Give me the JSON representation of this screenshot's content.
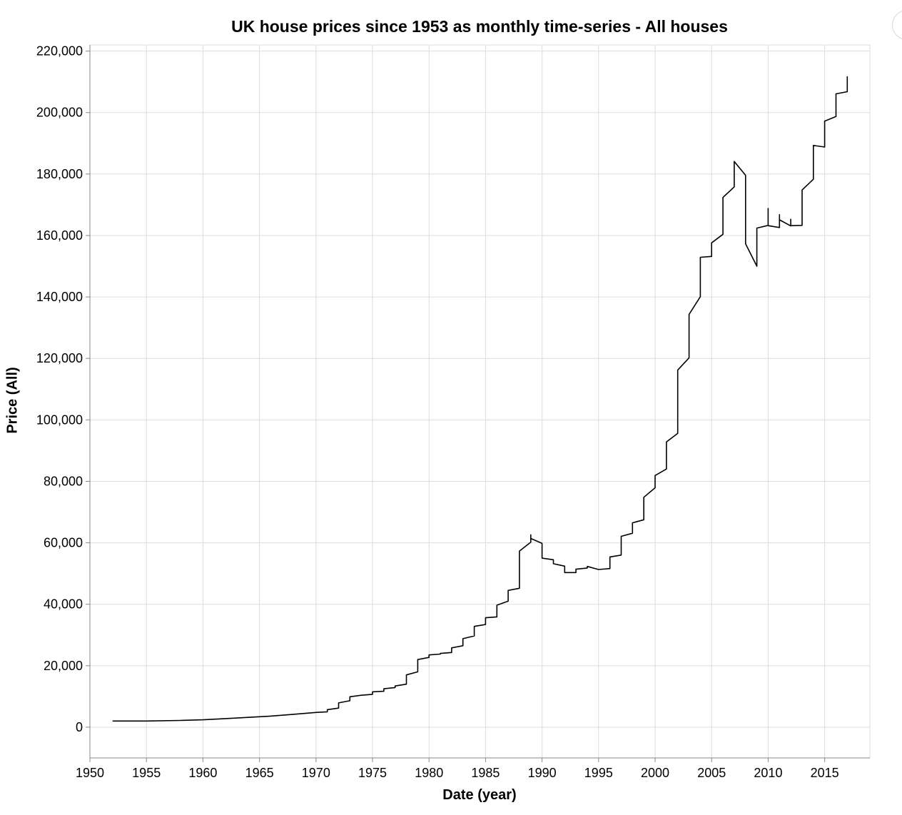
{
  "chart_data": {
    "type": "line",
    "title": "UK house prices since 1953 as monthly time-series - All houses",
    "xlabel": "Date (year)",
    "ylabel": "Price (All)",
    "xlim": [
      1950,
      2019
    ],
    "ylim": [
      -10000,
      222000
    ],
    "x_ticks": [
      1950,
      1955,
      1960,
      1965,
      1970,
      1975,
      1980,
      1985,
      1990,
      1995,
      2000,
      2005,
      2010,
      2015
    ],
    "y_ticks": [
      0,
      20000,
      40000,
      60000,
      80000,
      100000,
      120000,
      140000,
      160000,
      180000,
      200000,
      220000
    ],
    "y_tick_labels": [
      "0",
      "20,000",
      "40,000",
      "60,000",
      "80,000",
      "100,000",
      "120,000",
      "140,000",
      "160,000",
      "180,000",
      "200,000",
      "220,000"
    ],
    "x_tick_labels": [
      "1950",
      "1955",
      "1960",
      "1965",
      "1970",
      "1975",
      "1980",
      "1985",
      "1990",
      "1995",
      "2000",
      "2005",
      "2010",
      "2015"
    ],
    "grid": true,
    "series": [
      {
        "color": "#000000",
        "points": [
          [
            1952.0,
            2000
          ],
          [
            1955.0,
            2000
          ],
          [
            1958.0,
            2200
          ],
          [
            1960.0,
            2400
          ],
          [
            1962.0,
            2800
          ],
          [
            1964.0,
            3200
          ],
          [
            1966.0,
            3600
          ],
          [
            1968.0,
            4200
          ],
          [
            1970.0,
            4800
          ],
          [
            1971.0,
            5000
          ],
          [
            1971.0,
            5700
          ],
          [
            1972.0,
            6200
          ],
          [
            1972.0,
            7900
          ],
          [
            1973.0,
            8600
          ],
          [
            1973.0,
            9900
          ],
          [
            1974.0,
            10400
          ],
          [
            1975.0,
            10700
          ],
          [
            1975.0,
            11500
          ],
          [
            1976.0,
            11700
          ],
          [
            1976.0,
            12500
          ],
          [
            1977.0,
            12900
          ],
          [
            1977.0,
            13400
          ],
          [
            1978.0,
            14000
          ],
          [
            1978.0,
            17000
          ],
          [
            1979.0,
            18000
          ],
          [
            1979.0,
            22000
          ],
          [
            1980.0,
            22700
          ],
          [
            1980.0,
            23500
          ],
          [
            1981.0,
            23800
          ],
          [
            1981.0,
            24000
          ],
          [
            1982.0,
            24300
          ],
          [
            1982.0,
            25800
          ],
          [
            1983.0,
            26500
          ],
          [
            1983.0,
            28800
          ],
          [
            1984.0,
            29700
          ],
          [
            1984.0,
            32800
          ],
          [
            1985.0,
            33400
          ],
          [
            1985.0,
            35600
          ],
          [
            1986.0,
            35900
          ],
          [
            1986.0,
            39700
          ],
          [
            1987.0,
            41000
          ],
          [
            1987.0,
            44500
          ],
          [
            1988.0,
            45200
          ],
          [
            1988.0,
            57300
          ],
          [
            1989.0,
            60200
          ],
          [
            1989.0,
            62600
          ],
          [
            1989.0,
            61400
          ],
          [
            1990.0,
            59800
          ],
          [
            1990.0,
            55000
          ],
          [
            1991.0,
            54500
          ],
          [
            1991.0,
            53200
          ],
          [
            1992.0,
            52400
          ],
          [
            1992.0,
            50300
          ],
          [
            1993.0,
            50300
          ],
          [
            1993.0,
            51400
          ],
          [
            1994.0,
            51800
          ],
          [
            1994.0,
            52300
          ],
          [
            1995.0,
            51300
          ],
          [
            1996.0,
            51600
          ],
          [
            1996.0,
            55400
          ],
          [
            1997.0,
            56000
          ],
          [
            1997.0,
            62100
          ],
          [
            1998.0,
            63100
          ],
          [
            1998.0,
            66500
          ],
          [
            1999.0,
            67500
          ],
          [
            1999.0,
            74800
          ],
          [
            2000.0,
            77900
          ],
          [
            2000.0,
            81900
          ],
          [
            2001.0,
            84000
          ],
          [
            2001.0,
            92800
          ],
          [
            2002.0,
            95600
          ],
          [
            2002.0,
            116200
          ],
          [
            2003.0,
            120200
          ],
          [
            2003.0,
            134300
          ],
          [
            2004.0,
            140100
          ],
          [
            2004.0,
            152900
          ],
          [
            2005.0,
            153200
          ],
          [
            2005.0,
            157600
          ],
          [
            2006.0,
            160400
          ],
          [
            2006.0,
            172400
          ],
          [
            2007.0,
            175800
          ],
          [
            2007.0,
            184100
          ],
          [
            2008.0,
            179600
          ],
          [
            2008.0,
            157300
          ],
          [
            2009.0,
            150000
          ],
          [
            2009.0,
            162400
          ],
          [
            2010.0,
            163300
          ],
          [
            2010.0,
            168800
          ],
          [
            2010.0,
            163200
          ],
          [
            2011.0,
            162600
          ],
          [
            2011.0,
            166800
          ],
          [
            2011.0,
            165100
          ],
          [
            2012.0,
            163100
          ],
          [
            2012.0,
            165300
          ],
          [
            2012.0,
            163200
          ],
          [
            2013.0,
            163300
          ],
          [
            2013.0,
            174800
          ],
          [
            2014.0,
            178300
          ],
          [
            2014.0,
            189300
          ],
          [
            2015.0,
            188800
          ],
          [
            2015.0,
            197200
          ],
          [
            2016.0,
            198700
          ],
          [
            2016.0,
            206100
          ],
          [
            2017.0,
            206800
          ],
          [
            2017.0,
            211800
          ]
        ]
      }
    ]
  }
}
